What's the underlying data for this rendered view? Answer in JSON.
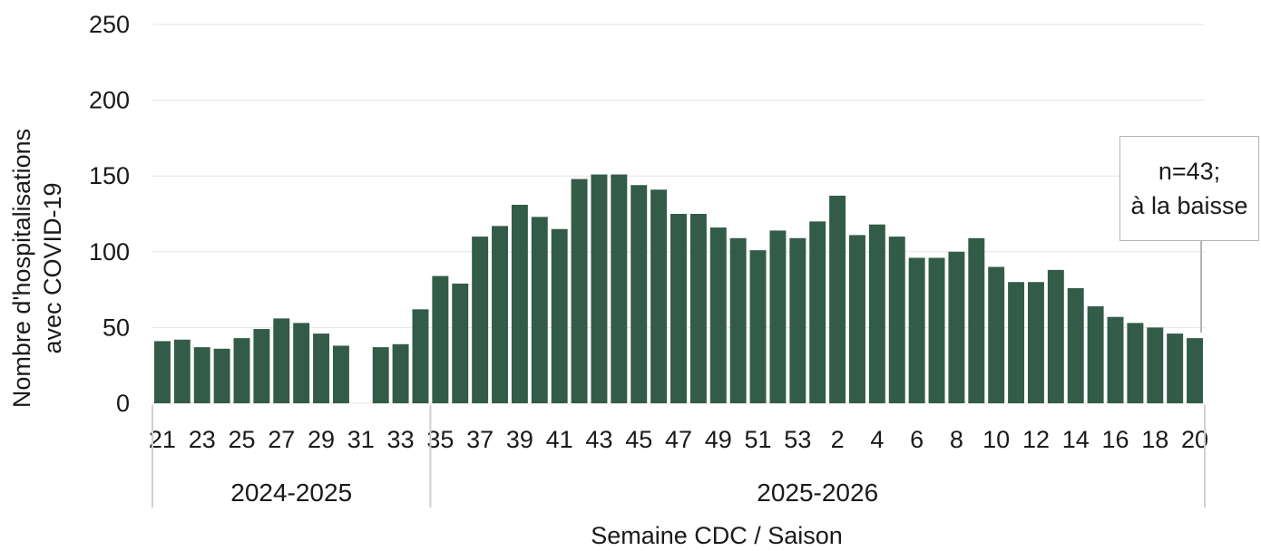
{
  "chart_data": {
    "type": "bar",
    "ylabel_lines": [
      "Nombre d'hospitalisations",
      "avec COVID-19"
    ],
    "xlabel": "Semaine CDC / Saison",
    "ylim": [
      0,
      250
    ],
    "yticks": [
      "0",
      "50",
      "100",
      "150",
      "200",
      "250"
    ],
    "grid": true,
    "bar_color": "#335c48",
    "seasons": [
      {
        "label": "2024-2025",
        "weeks": [
          21,
          22,
          23,
          24,
          25,
          26,
          27,
          28,
          29,
          30,
          31,
          32,
          33,
          34
        ]
      },
      {
        "label": "2025-2026",
        "weeks": [
          35,
          36,
          37,
          38,
          39,
          40,
          41,
          42,
          43,
          44,
          45,
          46,
          47,
          48,
          49,
          50,
          51,
          52,
          53,
          1,
          2,
          3,
          4,
          5,
          6,
          7,
          8,
          9,
          10,
          11,
          12,
          13,
          14,
          15,
          16,
          17,
          18,
          19,
          20
        ]
      }
    ],
    "tick_labels": [
      "21",
      "23",
      "25",
      "27",
      "29",
      "31",
      "33",
      "35",
      "37",
      "39",
      "41",
      "43",
      "45",
      "47",
      "49",
      "51",
      "53",
      "2",
      "4",
      "6",
      "8",
      "10",
      "12",
      "14",
      "16",
      "18",
      "20"
    ],
    "values": [
      41,
      42,
      37,
      36,
      43,
      49,
      56,
      53,
      46,
      38,
      null,
      37,
      39,
      62,
      84,
      79,
      110,
      117,
      131,
      123,
      115,
      148,
      151,
      151,
      144,
      141,
      125,
      125,
      116,
      109,
      101,
      114,
      109,
      120,
      137,
      111,
      118,
      110,
      96,
      96,
      100,
      109,
      90,
      80,
      80,
      88,
      76,
      64,
      57,
      53,
      50,
      46,
      43
    ],
    "annotation": {
      "lines": [
        "n=43;",
        "à la baisse"
      ]
    }
  }
}
